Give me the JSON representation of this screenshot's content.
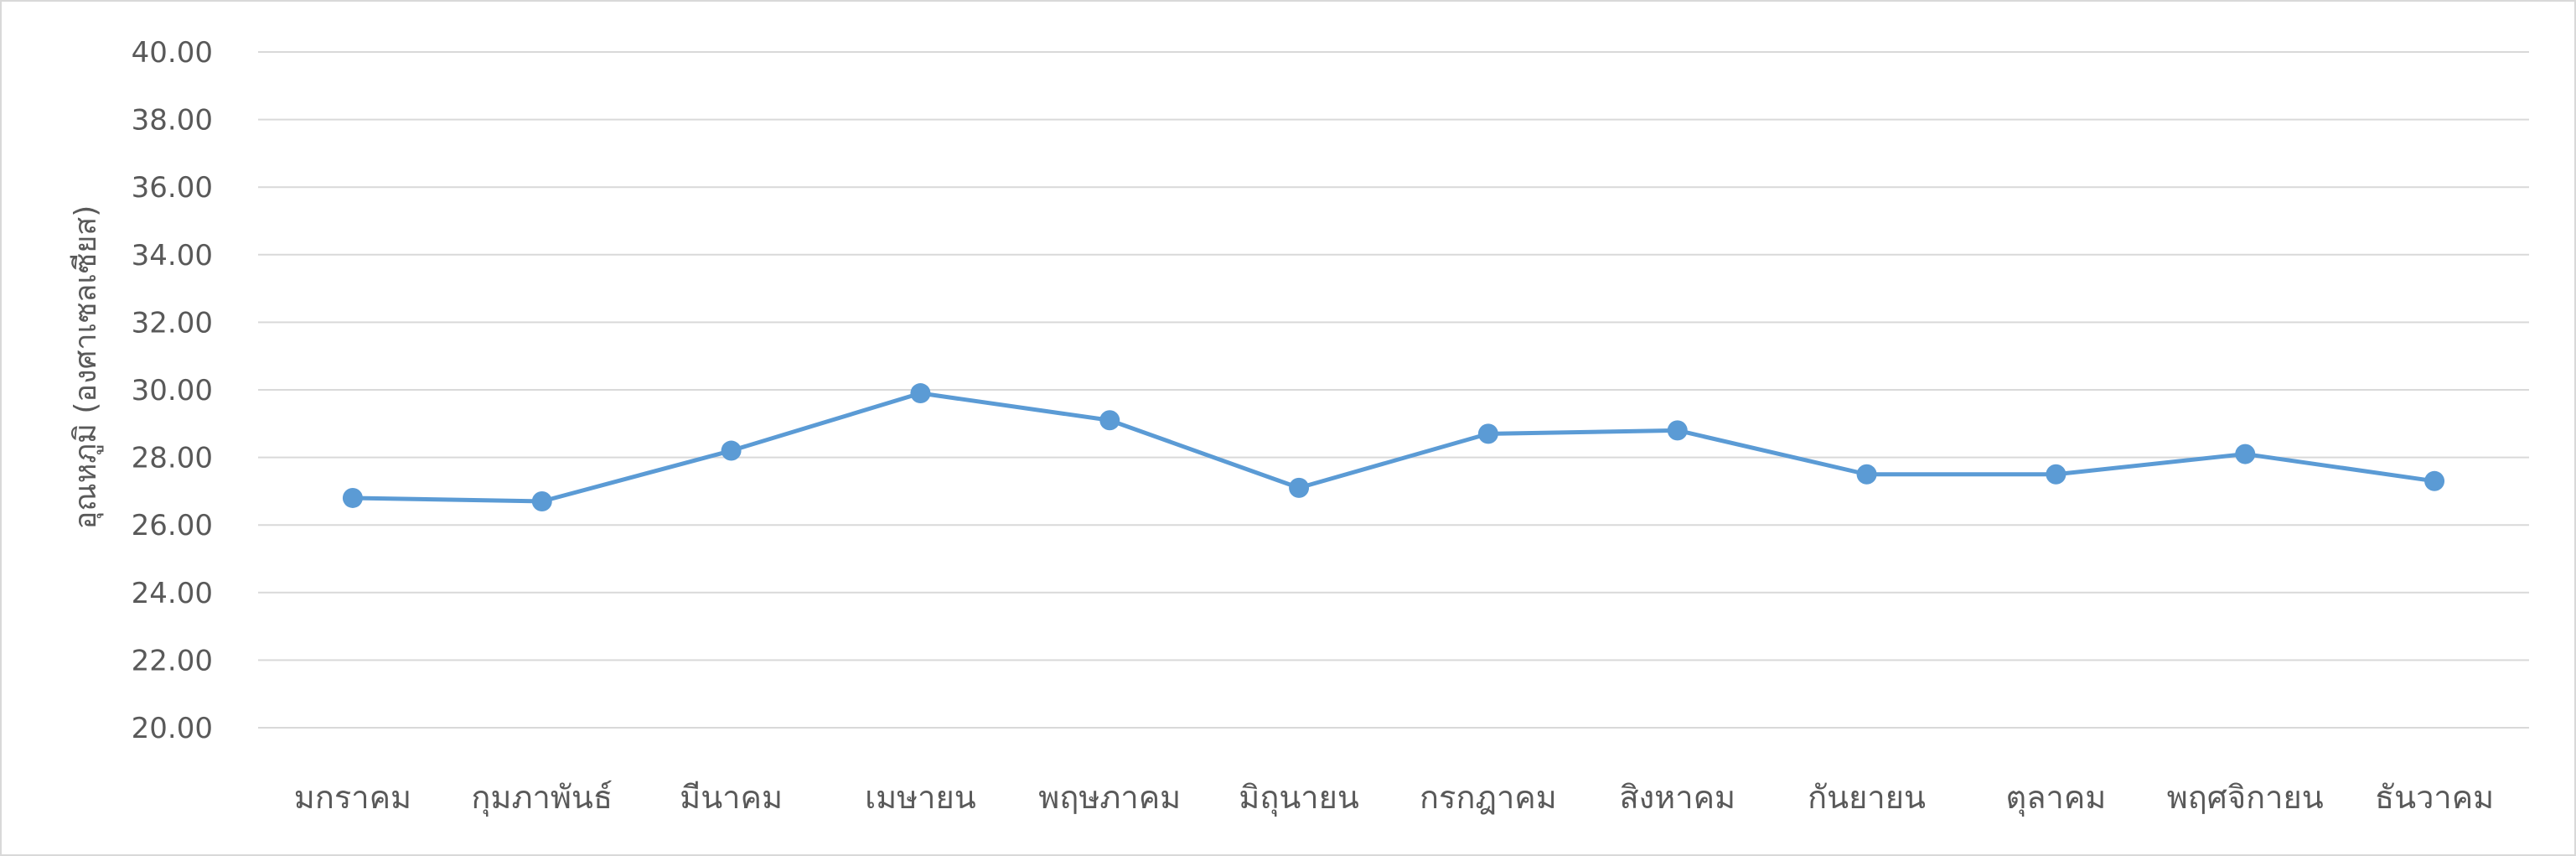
{
  "chart_data": {
    "type": "line",
    "title": "",
    "xlabel": "",
    "ylabel": "อุณหภูมิ (องศาเซลเซียส)",
    "ylim": [
      20,
      40
    ],
    "y_ticks": [
      "20.00",
      "22.00",
      "24.00",
      "26.00",
      "28.00",
      "30.00",
      "32.00",
      "34.00",
      "36.00",
      "38.00",
      "40.00"
    ],
    "grid": true,
    "legend": "none",
    "categories": [
      "มกราคม",
      "กุมภาพันธ์",
      "มีนาคม",
      "เมษายน",
      "พฤษภาคม",
      "มิถุนายน",
      "กรกฎาคม",
      "สิงหาคม",
      "กันยายน",
      "ตุลาคม",
      "พฤศจิกายน",
      "ธันวาคม"
    ],
    "series": [
      {
        "color": "#5b9bd5",
        "values": [
          26.8,
          26.7,
          28.2,
          29.9,
          29.1,
          27.1,
          28.7,
          28.8,
          27.5,
          27.5,
          28.1,
          27.3
        ]
      }
    ]
  }
}
